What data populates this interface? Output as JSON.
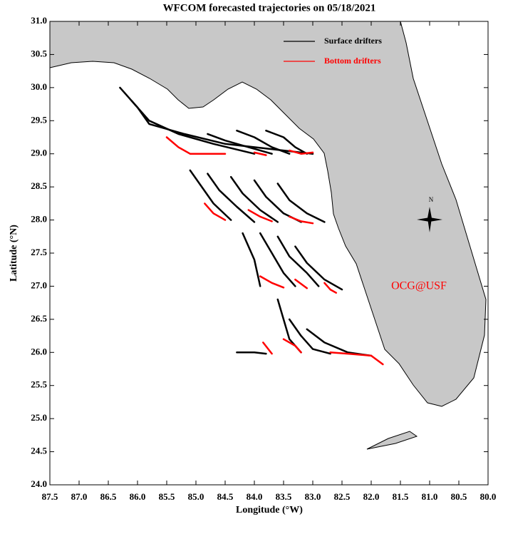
{
  "chart_data": {
    "type": "map",
    "title": "WFCOM forecasted trajectories on 05/18/2021",
    "xlabel": "Longitude (°W)",
    "ylabel": "Latitude (°N)",
    "annotation": "OCG@USF",
    "compass_label": "N",
    "xlim": [
      87.5,
      80.0
    ],
    "ylim": [
      24.0,
      31.0
    ],
    "xticks": [
      87.5,
      {
        "value": 87,
        "label": "87.0"
      },
      86.5,
      {
        "value": 86,
        "label": "86.0"
      },
      85.5,
      {
        "value": 85,
        "label": "85.0"
      },
      84.5,
      {
        "value": 84,
        "label": "84.0"
      },
      83.5,
      {
        "value": 83,
        "label": "83.0"
      },
      82.5,
      {
        "value": 82,
        "label": "82.0"
      },
      81.5,
      {
        "value": 81,
        "label": "81.0"
      },
      80.5,
      {
        "value": 80,
        "label": "80.0"
      }
    ],
    "yticks": [
      {
        "value": 24,
        "label": "24.0"
      },
      24.5,
      {
        "value": 25,
        "label": "25.0"
      },
      25.5,
      {
        "value": 26,
        "label": "26.0"
      },
      26.5,
      {
        "value": 27,
        "label": "27.0"
      },
      27.5,
      {
        "value": 28,
        "label": "28.0"
      },
      28.5,
      {
        "value": 29,
        "label": "29.0"
      },
      29.5,
      {
        "value": 30,
        "label": "30.0"
      },
      30.5,
      {
        "value": 31,
        "label": "31.0"
      }
    ],
    "series": [
      {
        "name": "Surface drifters",
        "color": "#000000",
        "tracks": [
          {
            "lon": [
              86.3,
              86.0,
              85.8,
              85.2,
              84.5,
              83.5,
              83.0
            ],
            "lat": [
              30.0,
              29.7,
              29.45,
              29.3,
              29.15,
              29.05,
              29.0
            ]
          },
          {
            "lon": [
              86.1,
              85.8,
              85.3,
              84.7,
              84.0
            ],
            "lat": [
              29.8,
              29.5,
              29.3,
              29.15,
              29.0
            ]
          },
          {
            "lon": [
              84.8,
              84.5,
              84.1,
              83.7
            ],
            "lat": [
              29.3,
              29.2,
              29.1,
              29.0
            ]
          },
          {
            "lon": [
              84.3,
              84.0,
              83.7,
              83.4
            ],
            "lat": [
              29.35,
              29.25,
              29.1,
              29.0
            ]
          },
          {
            "lon": [
              83.8,
              83.5,
              83.3,
              83.1
            ],
            "lat": [
              29.35,
              29.25,
              29.1,
              29.0
            ]
          },
          {
            "lon": [
              85.1,
              84.9,
              84.7,
              84.4
            ],
            "lat": [
              28.75,
              28.5,
              28.25,
              28.0
            ]
          },
          {
            "lon": [
              84.8,
              84.6,
              84.3,
              84.0
            ],
            "lat": [
              28.7,
              28.45,
              28.2,
              27.97
            ]
          },
          {
            "lon": [
              84.4,
              84.2,
              83.9,
              83.6
            ],
            "lat": [
              28.65,
              28.4,
              28.15,
              27.97
            ]
          },
          {
            "lon": [
              84.0,
              83.8,
              83.5,
              83.2
            ],
            "lat": [
              28.6,
              28.35,
              28.1,
              27.97
            ]
          },
          {
            "lon": [
              83.6,
              83.4,
              83.1,
              82.8
            ],
            "lat": [
              28.55,
              28.3,
              28.1,
              27.97
            ]
          },
          {
            "lon": [
              84.2,
              84.0,
              83.9
            ],
            "lat": [
              27.8,
              27.4,
              27.0
            ]
          },
          {
            "lon": [
              83.9,
              83.7,
              83.5,
              83.3
            ],
            "lat": [
              27.8,
              27.5,
              27.2,
              27.0
            ]
          },
          {
            "lon": [
              83.6,
              83.4,
              83.1,
              82.9
            ],
            "lat": [
              27.75,
              27.45,
              27.2,
              27.0
            ]
          },
          {
            "lon": [
              83.3,
              83.1,
              82.8,
              82.5
            ],
            "lat": [
              27.6,
              27.35,
              27.1,
              26.95
            ]
          },
          {
            "lon": [
              84.3,
              84.0,
              83.8
            ],
            "lat": [
              26.0,
              26.0,
              25.98
            ]
          },
          {
            "lon": [
              83.6,
              83.5,
              83.4,
              83.2
            ],
            "lat": [
              26.8,
              26.5,
              26.2,
              26.0
            ]
          },
          {
            "lon": [
              83.4,
              83.2,
              83.0,
              82.7
            ],
            "lat": [
              26.5,
              26.25,
              26.05,
              25.98
            ]
          },
          {
            "lon": [
              83.1,
              82.8,
              82.4,
              82.0
            ],
            "lat": [
              26.35,
              26.15,
              26.0,
              25.95
            ]
          }
        ]
      },
      {
        "name": "Bottom drifters",
        "color": "#ff0000",
        "tracks": [
          {
            "lon": [
              85.5,
              85.3,
              85.1,
              84.5
            ],
            "lat": [
              29.25,
              29.1,
              29.0,
              29.0
            ]
          },
          {
            "lon": [
              84.0,
              83.8
            ],
            "lat": [
              29.02,
              28.98
            ]
          },
          {
            "lon": [
              83.4,
              83.2,
              83.0
            ],
            "lat": [
              29.05,
              29.0,
              29.02
            ]
          },
          {
            "lon": [
              84.85,
              84.7,
              84.5
            ],
            "lat": [
              28.25,
              28.1,
              28.0
            ]
          },
          {
            "lon": [
              84.1,
              83.9,
              83.7
            ],
            "lat": [
              28.15,
              28.05,
              27.98
            ]
          },
          {
            "lon": [
              83.4,
              83.2,
              83.0
            ],
            "lat": [
              28.05,
              27.98,
              27.95
            ]
          },
          {
            "lon": [
              83.9,
              83.7,
              83.5
            ],
            "lat": [
              27.15,
              27.05,
              26.98
            ]
          },
          {
            "lon": [
              83.3,
              83.1
            ],
            "lat": [
              27.1,
              26.97
            ]
          },
          {
            "lon": [
              82.8,
              82.7,
              82.6
            ],
            "lat": [
              27.05,
              26.95,
              26.9
            ]
          },
          {
            "lon": [
              83.85,
              83.7
            ],
            "lat": [
              26.15,
              25.98
            ]
          },
          {
            "lon": [
              83.5,
              83.3,
              83.2
            ],
            "lat": [
              26.2,
              26.1,
              26.0
            ]
          },
          {
            "lon": [
              82.7,
              82.4,
              82.0,
              81.8
            ],
            "lat": [
              26.0,
              25.98,
              25.95,
              25.82
            ]
          }
        ]
      }
    ]
  }
}
